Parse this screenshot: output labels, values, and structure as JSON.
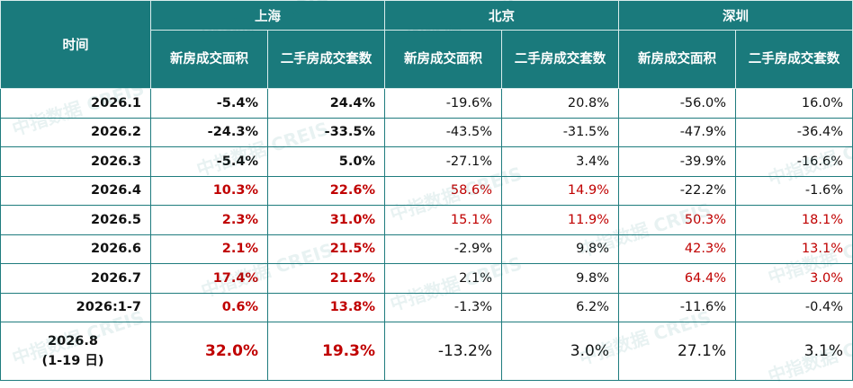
{
  "table": {
    "time_header": "时间",
    "cities": [
      {
        "name": "上海",
        "columns": [
          "新房成交面积",
          "二手房成交套数"
        ]
      },
      {
        "name": "北京",
        "columns": [
          "新房成交面积",
          "二手房成交套数"
        ]
      },
      {
        "name": "深圳",
        "columns": [
          "新房成交面积",
          "二手房成交套数"
        ]
      }
    ],
    "rows": [
      {
        "period": "2026.1",
        "values": [
          "-5.4%",
          "24.4%",
          "-19.6%",
          "20.8%",
          "-56.0%",
          "16.0%"
        ]
      },
      {
        "period": "2026.2",
        "values": [
          "-24.3%",
          "-33.5%",
          "-43.5%",
          "-31.5%",
          "-47.9%",
          "-36.4%"
        ]
      },
      {
        "period": "2026.3",
        "values": [
          "-5.4%",
          "5.0%",
          "-27.1%",
          "3.4%",
          "-39.9%",
          "-16.6%"
        ]
      },
      {
        "period": "2026.4",
        "values": [
          "10.3%",
          "22.6%",
          "58.6%",
          "14.9%",
          "-22.2%",
          "-1.6%"
        ]
      },
      {
        "period": "2026.5",
        "values": [
          "2.3%",
          "31.0%",
          "15.1%",
          "11.9%",
          "50.3%",
          "18.1%"
        ]
      },
      {
        "period": "2026.6",
        "values": [
          "2.1%",
          "21.5%",
          "-2.9%",
          "9.8%",
          "42.3%",
          "13.1%"
        ]
      },
      {
        "period": "2026.7",
        "values": [
          "17.4%",
          "21.2%",
          "2.1%",
          "9.8%",
          "64.4%",
          "3.0%"
        ]
      },
      {
        "period": "2026:1-7",
        "values": [
          "0.6%",
          "13.8%",
          "-1.3%",
          "6.2%",
          "-11.6%",
          "-0.4%"
        ]
      },
      {
        "period": "2026.8\n(1-19 日)",
        "values": [
          "32.0%",
          "19.3%",
          "-13.2%",
          "3.0%",
          "27.1%",
          "3.1%"
        ]
      }
    ]
  },
  "watermark": "中指数据 CREIS"
}
